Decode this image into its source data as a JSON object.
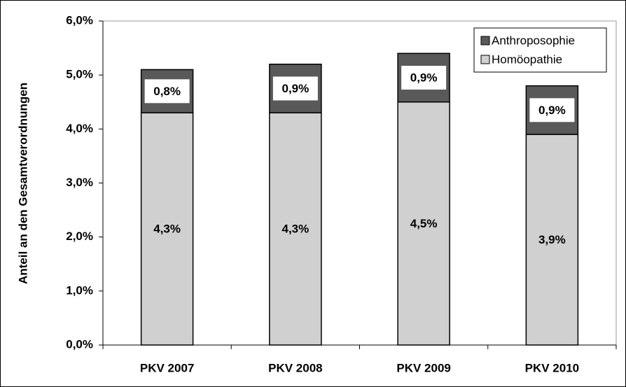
{
  "chart_data": {
    "type": "stacked_bar",
    "y_label": "Anteil an den Gesamtverordnungen",
    "categories": [
      "PKV 2007",
      "PKV 2008",
      "PKV 2009",
      "PKV 2010"
    ],
    "series": [
      {
        "name": "Homöopathie",
        "color": "#d0d0d0",
        "values": [
          4.3,
          4.3,
          4.5,
          3.9
        ],
        "value_labels": [
          "4,3%",
          "4,3%",
          "4,5%",
          "3,9%"
        ]
      },
      {
        "name": "Anthroposophie",
        "color": "#595959",
        "values": [
          0.8,
          0.9,
          0.9,
          0.9
        ],
        "value_labels": [
          "0,8%",
          "0,9%",
          "0,9%",
          "0,9%"
        ]
      }
    ],
    "ylim": [
      0,
      6
    ],
    "yticks": [
      {
        "value": 0,
        "label": "0,0%"
      },
      {
        "value": 1,
        "label": "1,0%"
      },
      {
        "value": 2,
        "label": "2,0%"
      },
      {
        "value": 3,
        "label": "3,0%"
      },
      {
        "value": 4,
        "label": "4,0%"
      },
      {
        "value": 5,
        "label": "5,0%"
      },
      {
        "value": 6,
        "label": "6,0%"
      }
    ],
    "legend": "top-right"
  }
}
